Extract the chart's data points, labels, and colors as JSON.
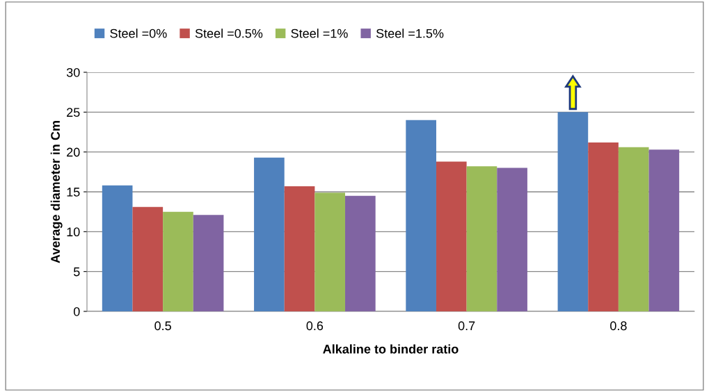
{
  "chart_data": {
    "type": "bar",
    "xlabel": "Alkaline to binder ratio",
    "ylabel": "Average diameter in Cm",
    "categories": [
      "0.5",
      "0.6",
      "0.7",
      "0.8"
    ],
    "series": [
      {
        "name": "Steel =0%",
        "color": "#4f81bd",
        "values": [
          15.8,
          19.3,
          24.0,
          25.0
        ]
      },
      {
        "name": "Steel =0.5%",
        "color": "#c0504d",
        "values": [
          13.1,
          15.7,
          18.8,
          21.2
        ]
      },
      {
        "name": "Steel =1%",
        "color": "#9bbb59",
        "values": [
          12.5,
          14.9,
          18.2,
          20.6
        ]
      },
      {
        "name": "Steel =1.5%",
        "color": "#8064a2",
        "values": [
          12.1,
          14.5,
          18.0,
          20.3
        ]
      }
    ],
    "ylim": [
      0,
      30
    ],
    "yticks": [
      0,
      5,
      10,
      15,
      20,
      25,
      30
    ],
    "grid": "y",
    "legend": "top"
  }
}
